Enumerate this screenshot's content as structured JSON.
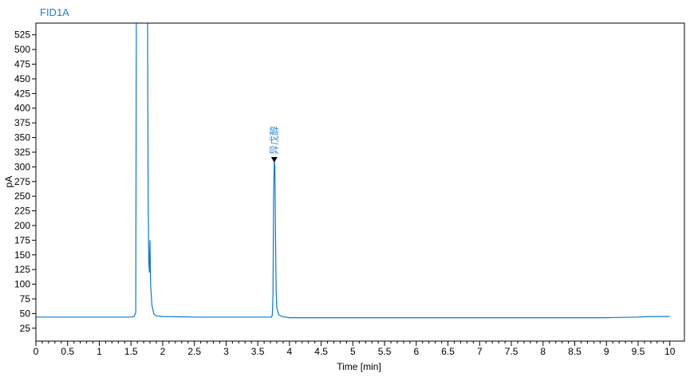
{
  "chart_data": {
    "type": "line",
    "title": "FID1A",
    "xlabel": "Time [min]",
    "ylabel": "pA",
    "xlim": [
      0,
      10.23
    ],
    "ylim": [
      3,
      545
    ],
    "x_ticks": [
      0,
      0.5,
      1,
      1.5,
      2,
      2.5,
      3,
      3.5,
      4,
      4.5,
      5,
      5.5,
      6,
      6.5,
      7,
      7.5,
      8,
      8.5,
      9,
      9.5,
      10
    ],
    "x_tick_labels": [
      "0",
      "0.5",
      "1",
      "1.5",
      "2",
      "2.5",
      "3",
      "3.5",
      "4",
      "4.5",
      "5",
      "5.5",
      "6",
      "6.5",
      "7",
      "7.5",
      "8",
      "8.5",
      "9",
      "9.5",
      "10"
    ],
    "y_ticks": [
      25,
      50,
      75,
      100,
      125,
      150,
      175,
      200,
      225,
      250,
      275,
      300,
      325,
      350,
      375,
      400,
      425,
      450,
      475,
      500,
      525
    ],
    "y_tick_labels": [
      "25",
      "50",
      "75",
      "100",
      "125",
      "150",
      "175",
      "200",
      "225",
      "250",
      "275",
      "300",
      "325",
      "350",
      "375",
      "400",
      "425",
      "450",
      "475",
      "500",
      "525"
    ],
    "grid": false,
    "line_color": "#0a78d2",
    "series": [
      {
        "points": [
          [
            0,
            44
          ],
          [
            1.5,
            44
          ],
          [
            1.55,
            45
          ],
          [
            1.575,
            52
          ],
          [
            1.582,
            410
          ],
          [
            1.585,
            600
          ],
          [
            1.76,
            600
          ],
          [
            1.765,
            425
          ],
          [
            1.77,
            250
          ],
          [
            1.78,
            140
          ],
          [
            1.79,
            120
          ],
          [
            1.8,
            175
          ],
          [
            1.81,
            100
          ],
          [
            1.83,
            65
          ],
          [
            1.86,
            50
          ],
          [
            1.9,
            46
          ],
          [
            2,
            45
          ],
          [
            2.5,
            44
          ],
          [
            3.0,
            44
          ],
          [
            3.7,
            44
          ],
          [
            3.72,
            44
          ],
          [
            3.73,
            48
          ],
          [
            3.74,
            80
          ],
          [
            3.75,
            250
          ],
          [
            3.76,
            310
          ],
          [
            3.77,
            300
          ],
          [
            3.78,
            180
          ],
          [
            3.79,
            90
          ],
          [
            3.8,
            60
          ],
          [
            3.83,
            48
          ],
          [
            3.88,
            45
          ],
          [
            4,
            43
          ],
          [
            5,
            43
          ],
          [
            6,
            43
          ],
          [
            6.5,
            43
          ],
          [
            7,
            43
          ],
          [
            8,
            43
          ],
          [
            9,
            43
          ],
          [
            9.5,
            44
          ],
          [
            9.7,
            45
          ],
          [
            10,
            45
          ]
        ]
      }
    ],
    "annotations": [
      {
        "label": "异戊醇",
        "x": 3.76,
        "y": 310,
        "marker": "triangle-down"
      }
    ]
  }
}
